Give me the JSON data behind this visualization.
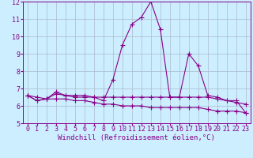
{
  "x": [
    0,
    1,
    2,
    3,
    4,
    5,
    6,
    7,
    8,
    9,
    10,
    11,
    12,
    13,
    14,
    15,
    16,
    17,
    18,
    19,
    20,
    21,
    22,
    23
  ],
  "line1": [
    6.6,
    6.3,
    6.4,
    6.8,
    6.6,
    6.6,
    6.6,
    6.5,
    6.3,
    7.5,
    9.5,
    10.7,
    11.1,
    12.0,
    10.4,
    6.5,
    6.5,
    9.0,
    8.3,
    6.6,
    6.5,
    6.3,
    6.3,
    5.6
  ],
  "line2": [
    6.6,
    6.3,
    6.4,
    6.7,
    6.6,
    6.5,
    6.5,
    6.5,
    6.5,
    6.5,
    6.5,
    6.5,
    6.5,
    6.5,
    6.5,
    6.5,
    6.5,
    6.5,
    6.5,
    6.5,
    6.4,
    6.3,
    6.2,
    6.1
  ],
  "line3": [
    6.6,
    6.5,
    6.4,
    6.4,
    6.4,
    6.3,
    6.3,
    6.2,
    6.1,
    6.1,
    6.0,
    6.0,
    6.0,
    5.9,
    5.9,
    5.9,
    5.9,
    5.9,
    5.9,
    5.8,
    5.7,
    5.7,
    5.7,
    5.6
  ],
  "line_color": "#880088",
  "bg_color": "#cceeff",
  "grid_color": "#aabbcc",
  "ylim": [
    5,
    12
  ],
  "xlim": [
    -0.5,
    23.5
  ],
  "yticks": [
    5,
    6,
    7,
    8,
    9,
    10,
    11,
    12
  ],
  "xticks": [
    0,
    1,
    2,
    3,
    4,
    5,
    6,
    7,
    8,
    9,
    10,
    11,
    12,
    13,
    14,
    15,
    16,
    17,
    18,
    19,
    20,
    21,
    22,
    23
  ],
  "xlabel": "Windchill (Refroidissement éolien,°C)",
  "xlabel_fontsize": 6.5,
  "tick_fontsize": 6.0,
  "marker": "+",
  "marker_size": 4,
  "line_width": 0.8
}
